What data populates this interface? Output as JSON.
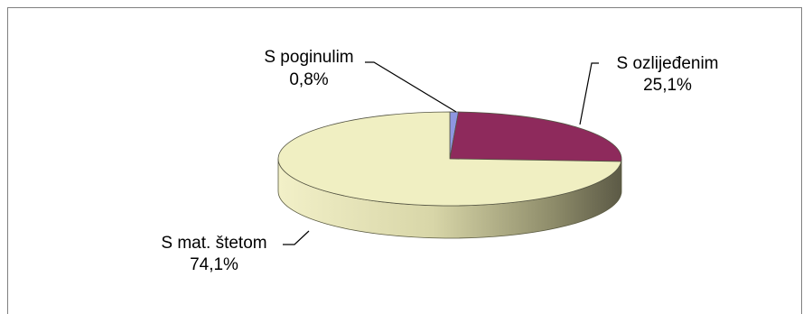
{
  "chart_data": {
    "type": "pie",
    "style": "3d",
    "slices": [
      {
        "label": "S poginulim",
        "value_label": "0,8%",
        "value": 0.8,
        "color": "#8e96e0"
      },
      {
        "label": "S ozlijeđenim",
        "value_label": "25,1%",
        "value": 25.1,
        "color": "#8e2a5c"
      },
      {
        "label": "S mat. štetom",
        "value_label": "74,1%",
        "value": 74.1,
        "color": "#f0efc2"
      }
    ],
    "legend": "none",
    "leader_lines": true
  }
}
